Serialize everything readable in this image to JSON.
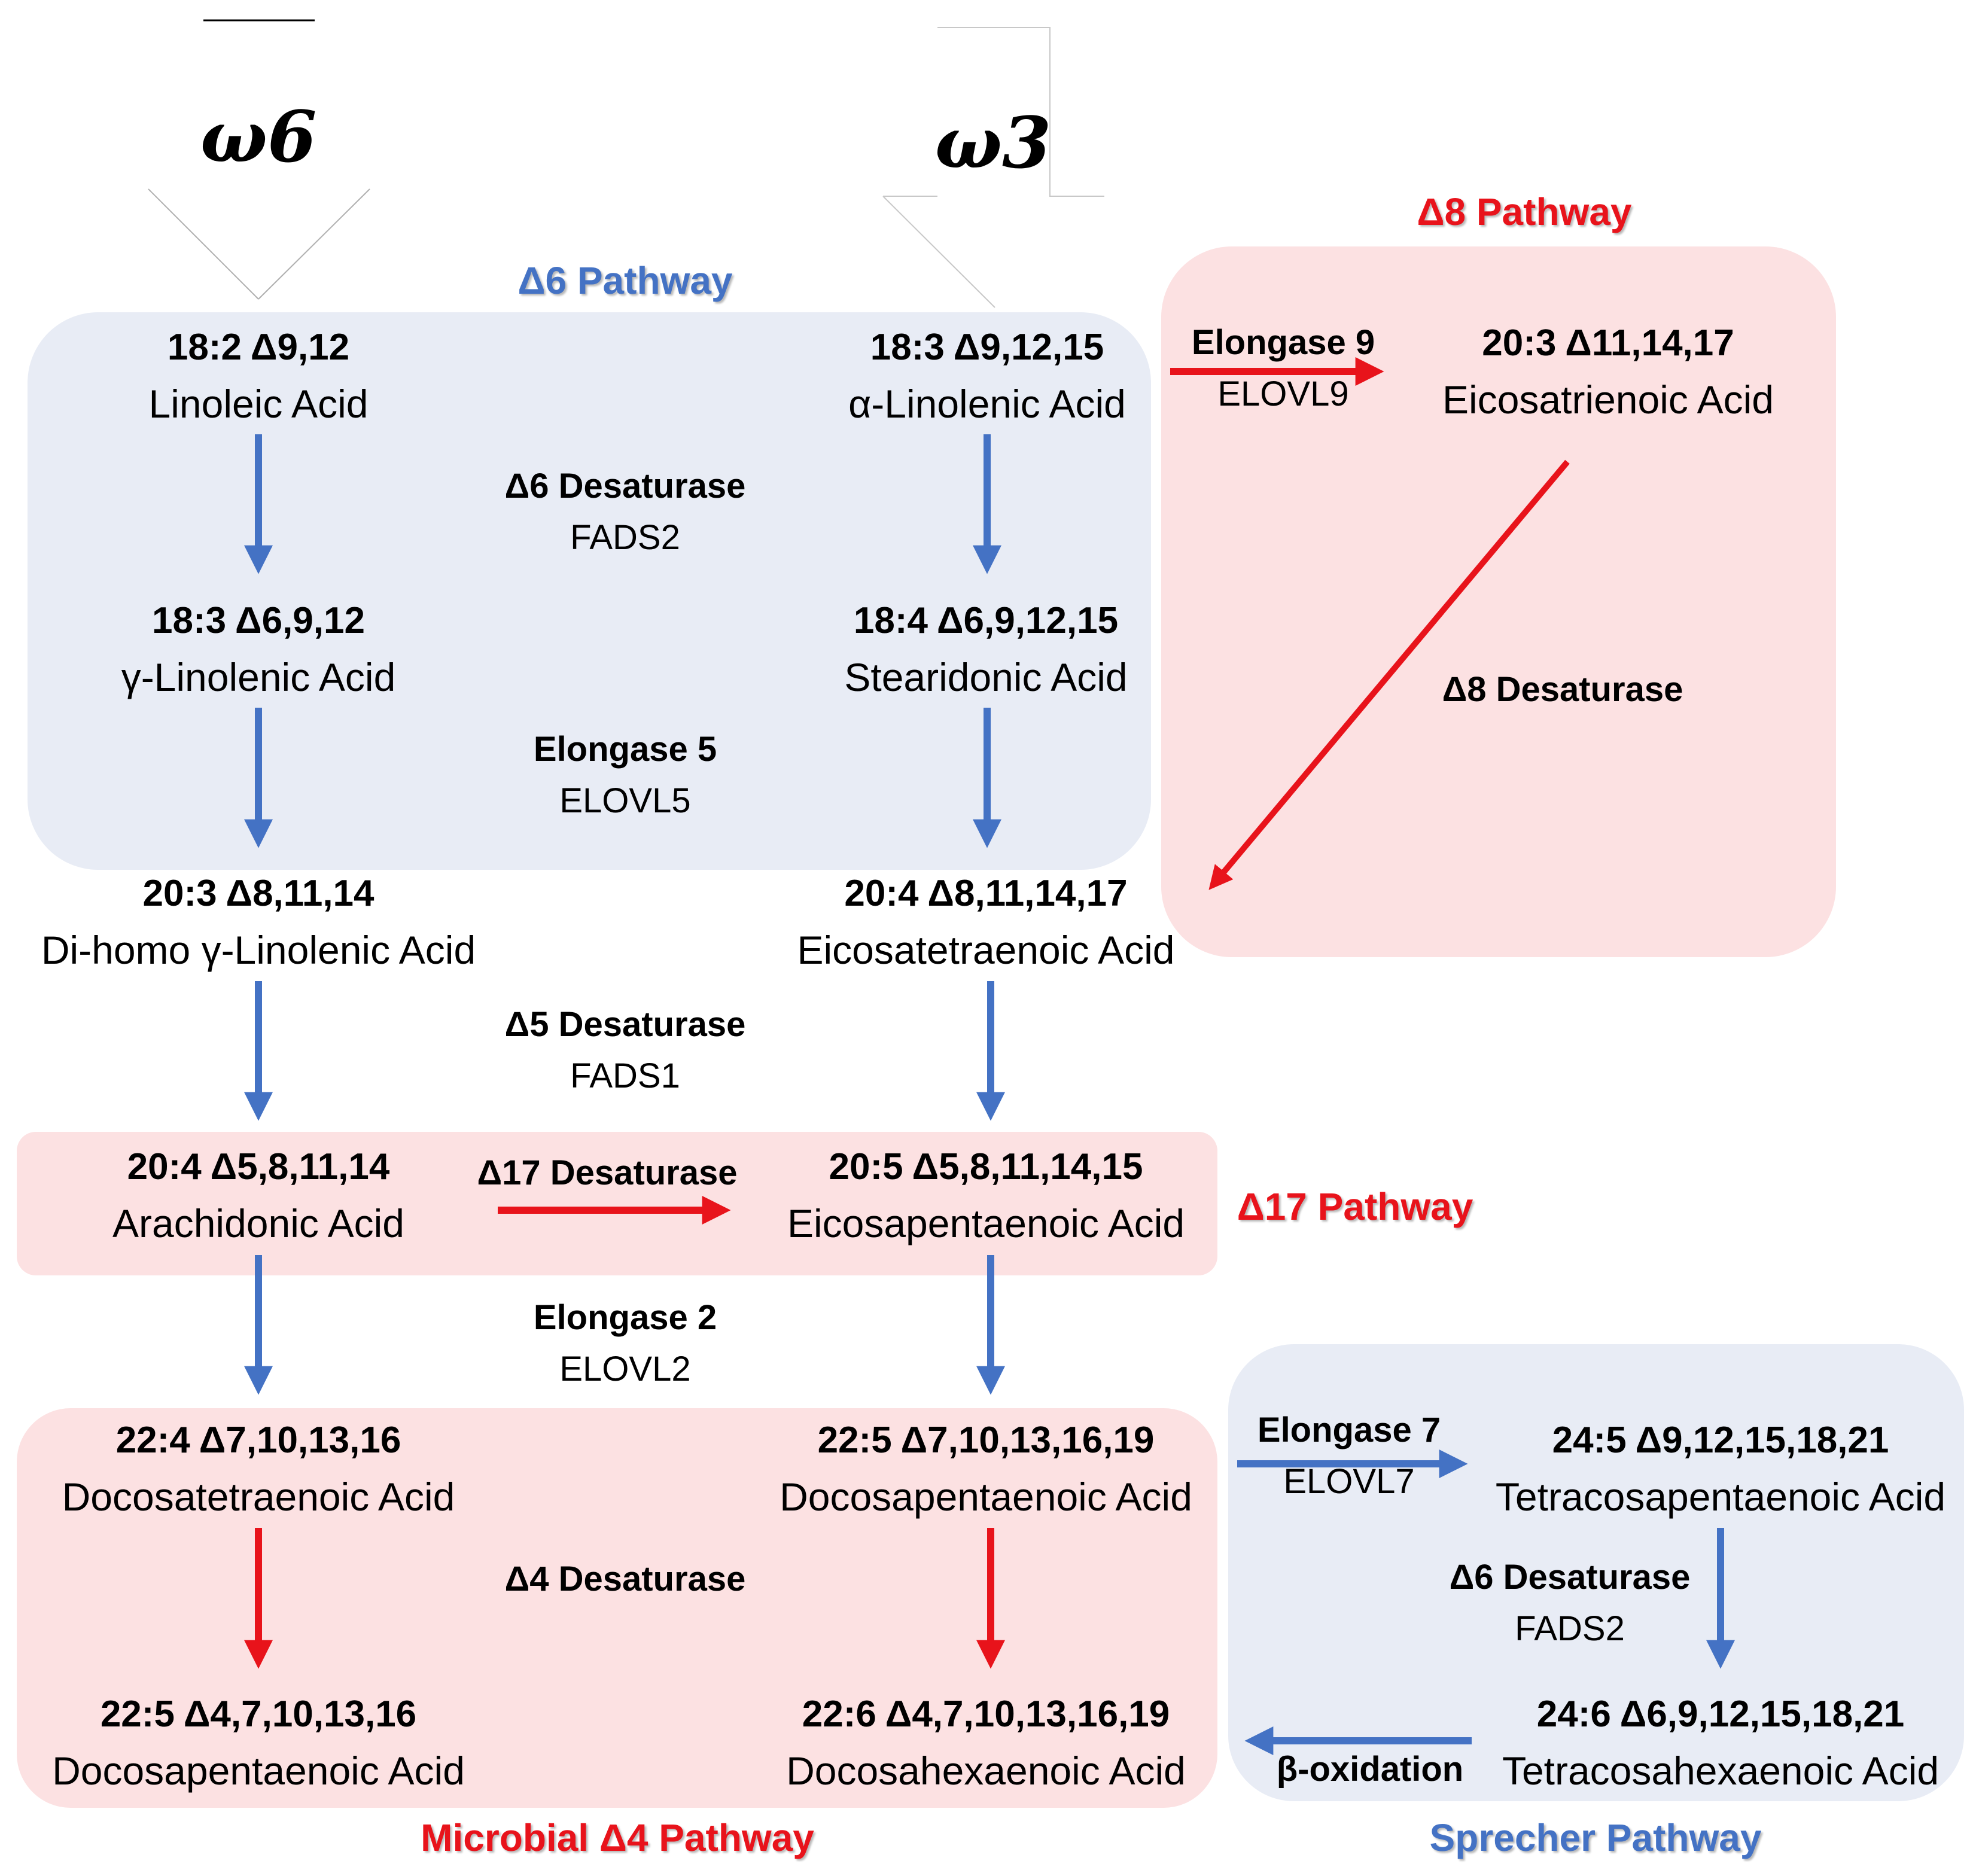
{
  "omega_labels": {
    "omega6": "ω6",
    "omega3": "ω3"
  },
  "pathways": {
    "d6": "Δ6 Pathway",
    "d8": "Δ8 Pathway",
    "d17": "Δ17 Pathway",
    "microbial_d4": "Microbial Δ4 Pathway",
    "sprecher": "Sprecher Pathway"
  },
  "fatty_acids": {
    "la": {
      "code": "18:2 Δ9,12",
      "name": "Linoleic Acid"
    },
    "ala": {
      "code": "18:3 Δ9,12,15",
      "name": "α-Linolenic Acid"
    },
    "ete": {
      "code": "20:3 Δ11,14,17",
      "name": "Eicosatrienoic Acid"
    },
    "gla": {
      "code": "18:3 Δ6,9,12",
      "name": "γ-Linolenic Acid"
    },
    "sda": {
      "code": "18:4 Δ6,9,12,15",
      "name": "Stearidonic Acid"
    },
    "dgla": {
      "code": "20:3 Δ8,11,14",
      "name": "Di-homo γ-Linolenic Acid"
    },
    "eta": {
      "code": "20:4 Δ8,11,14,17",
      "name": "Eicosatetraenoic Acid"
    },
    "aa": {
      "code": "20:4 Δ5,8,11,14",
      "name": "Arachidonic Acid"
    },
    "epa": {
      "code": "20:5 Δ5,8,11,14,15",
      "name": "Eicosapentaenoic Acid"
    },
    "adra": {
      "code": "22:4 Δ7,10,13,16",
      "name": "Docosatetraenoic Acid"
    },
    "dpa3": {
      "code": "22:5 Δ7,10,13,16,19",
      "name": "Docosapentaenoic Acid"
    },
    "dpa6": {
      "code": "22:5 Δ4,7,10,13,16",
      "name": "Docosapentaenoic Acid"
    },
    "dha": {
      "code": "22:6 Δ4,7,10,13,16,19",
      "name": "Docosahexaenoic Acid"
    },
    "tpa": {
      "code": "24:5 Δ9,12,15,18,21",
      "name": "Tetracosapentaenoic Acid"
    },
    "tha": {
      "code": "24:6 Δ6,9,12,15,18,21",
      "name": "Tetracosahexaenoic Acid"
    }
  },
  "enzymes": {
    "d6_desaturase": {
      "name": "Δ6 Desaturase",
      "gene": "FADS2"
    },
    "elongase5": {
      "name": "Elongase 5",
      "gene": "ELOVL5"
    },
    "elongase9": {
      "name": "Elongase 9",
      "gene": "ELOVL9"
    },
    "d8_desaturase": {
      "name": "Δ8 Desaturase"
    },
    "d5_desaturase": {
      "name": "Δ5 Desaturase",
      "gene": "FADS1"
    },
    "d17_desaturase": {
      "name": "Δ17 Desaturase"
    },
    "elongase2": {
      "name": "Elongase 2",
      "gene": "ELOVL2"
    },
    "d4_desaturase": {
      "name": "Δ4 Desaturase"
    },
    "elongase7": {
      "name": "Elongase 7",
      "gene": "ELOVL7"
    },
    "d6_desaturase_sprecher": {
      "name": "Δ6 Desaturase",
      "gene": "FADS2"
    },
    "beta_oxidation": {
      "name": "β-oxidation"
    }
  },
  "colors": {
    "blue_region": "#E8ECF5",
    "pink_region": "#FCE1E2",
    "blue_arrow": "#4472C4",
    "red_arrow": "#E8131B",
    "red_text": "#E8131B",
    "blue_text": "#4472C4"
  }
}
